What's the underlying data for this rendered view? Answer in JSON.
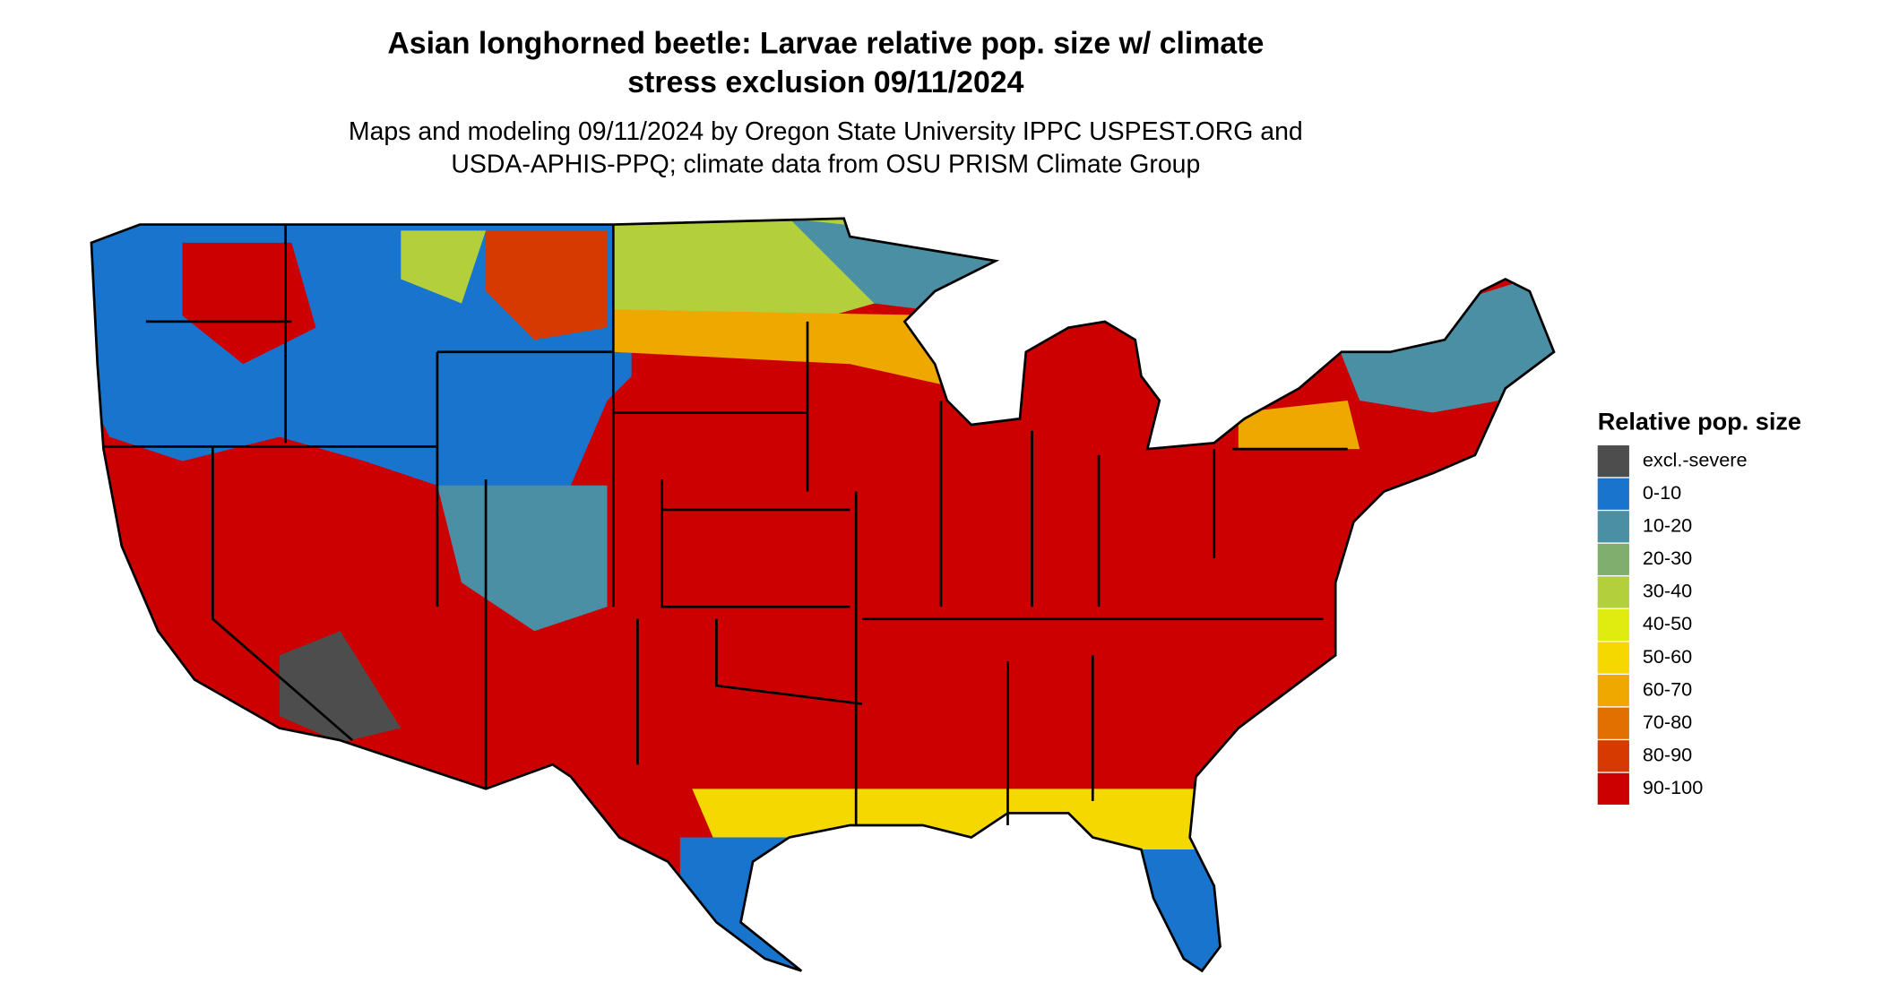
{
  "title": [
    "Asian longhorned beetle: Larvae relative pop. size w/ climate",
    "stress exclusion 09/11/2024"
  ],
  "subtitle": [
    "Maps and modeling 09/11/2024 by Oregon State University IPPC USPEST.ORG and",
    "USDA-APHIS-PPQ; climate data from OSU PRISM Climate Group"
  ],
  "legend": {
    "title": "Relative pop. size",
    "items": [
      {
        "label": "excl.-severe",
        "color": "#4d4d4d"
      },
      {
        "label": "0-10",
        "color": "#1874cd"
      },
      {
        "label": "10-20",
        "color": "#4a8fa3"
      },
      {
        "label": "20-30",
        "color": "#7fae6e"
      },
      {
        "label": "30-40",
        "color": "#b3cf3c"
      },
      {
        "label": "40-50",
        "color": "#e0eb10"
      },
      {
        "label": "50-60",
        "color": "#f5d800"
      },
      {
        "label": "60-70",
        "color": "#eea800"
      },
      {
        "label": "70-80",
        "color": "#e27000"
      },
      {
        "label": "80-90",
        "color": "#d63a00"
      },
      {
        "label": "90-100",
        "color": "#cc0000"
      }
    ]
  }
}
